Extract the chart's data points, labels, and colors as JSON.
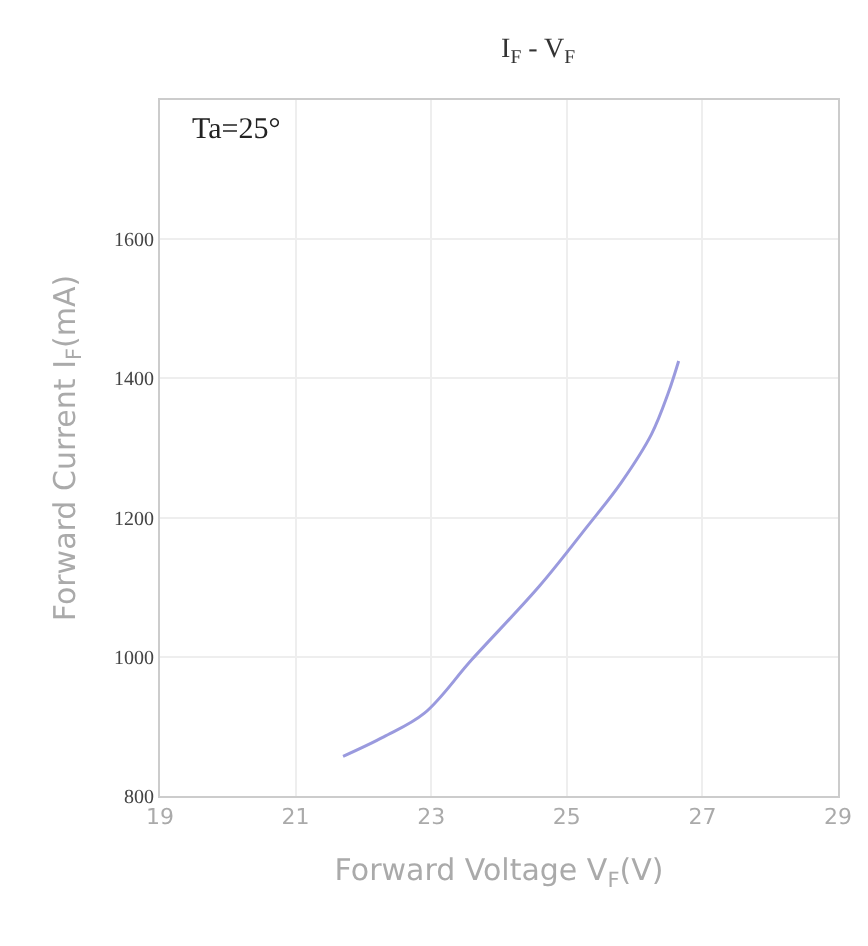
{
  "chart_data": {
    "type": "line",
    "title": "I$_{F}$ - V$_{F}$",
    "xlabel": "Forward Voltage V$_{F}$(V)",
    "ylabel": "Forward Current I$_{F}$(mA)",
    "annotations": [
      "Ta=25°"
    ],
    "series": [
      {
        "color": "#9a9ade",
        "x": [
          21.7,
          22.3,
          22.9,
          23.6,
          24.6,
          25.3,
          25.8,
          26.25,
          26.5,
          26.65
        ],
        "values": [
          857,
          885,
          919,
          996,
          1102,
          1187,
          1250,
          1320,
          1380,
          1425
        ]
      }
    ],
    "xlim": [
      19,
      29
    ],
    "xticks": [
      19,
      21,
      23,
      25,
      27,
      29
    ],
    "ylim": [
      800,
      1800
    ],
    "yticks": [
      800,
      1000,
      1200,
      1400,
      1600
    ],
    "grid": true,
    "marker": "none",
    "line_style": "solid"
  }
}
